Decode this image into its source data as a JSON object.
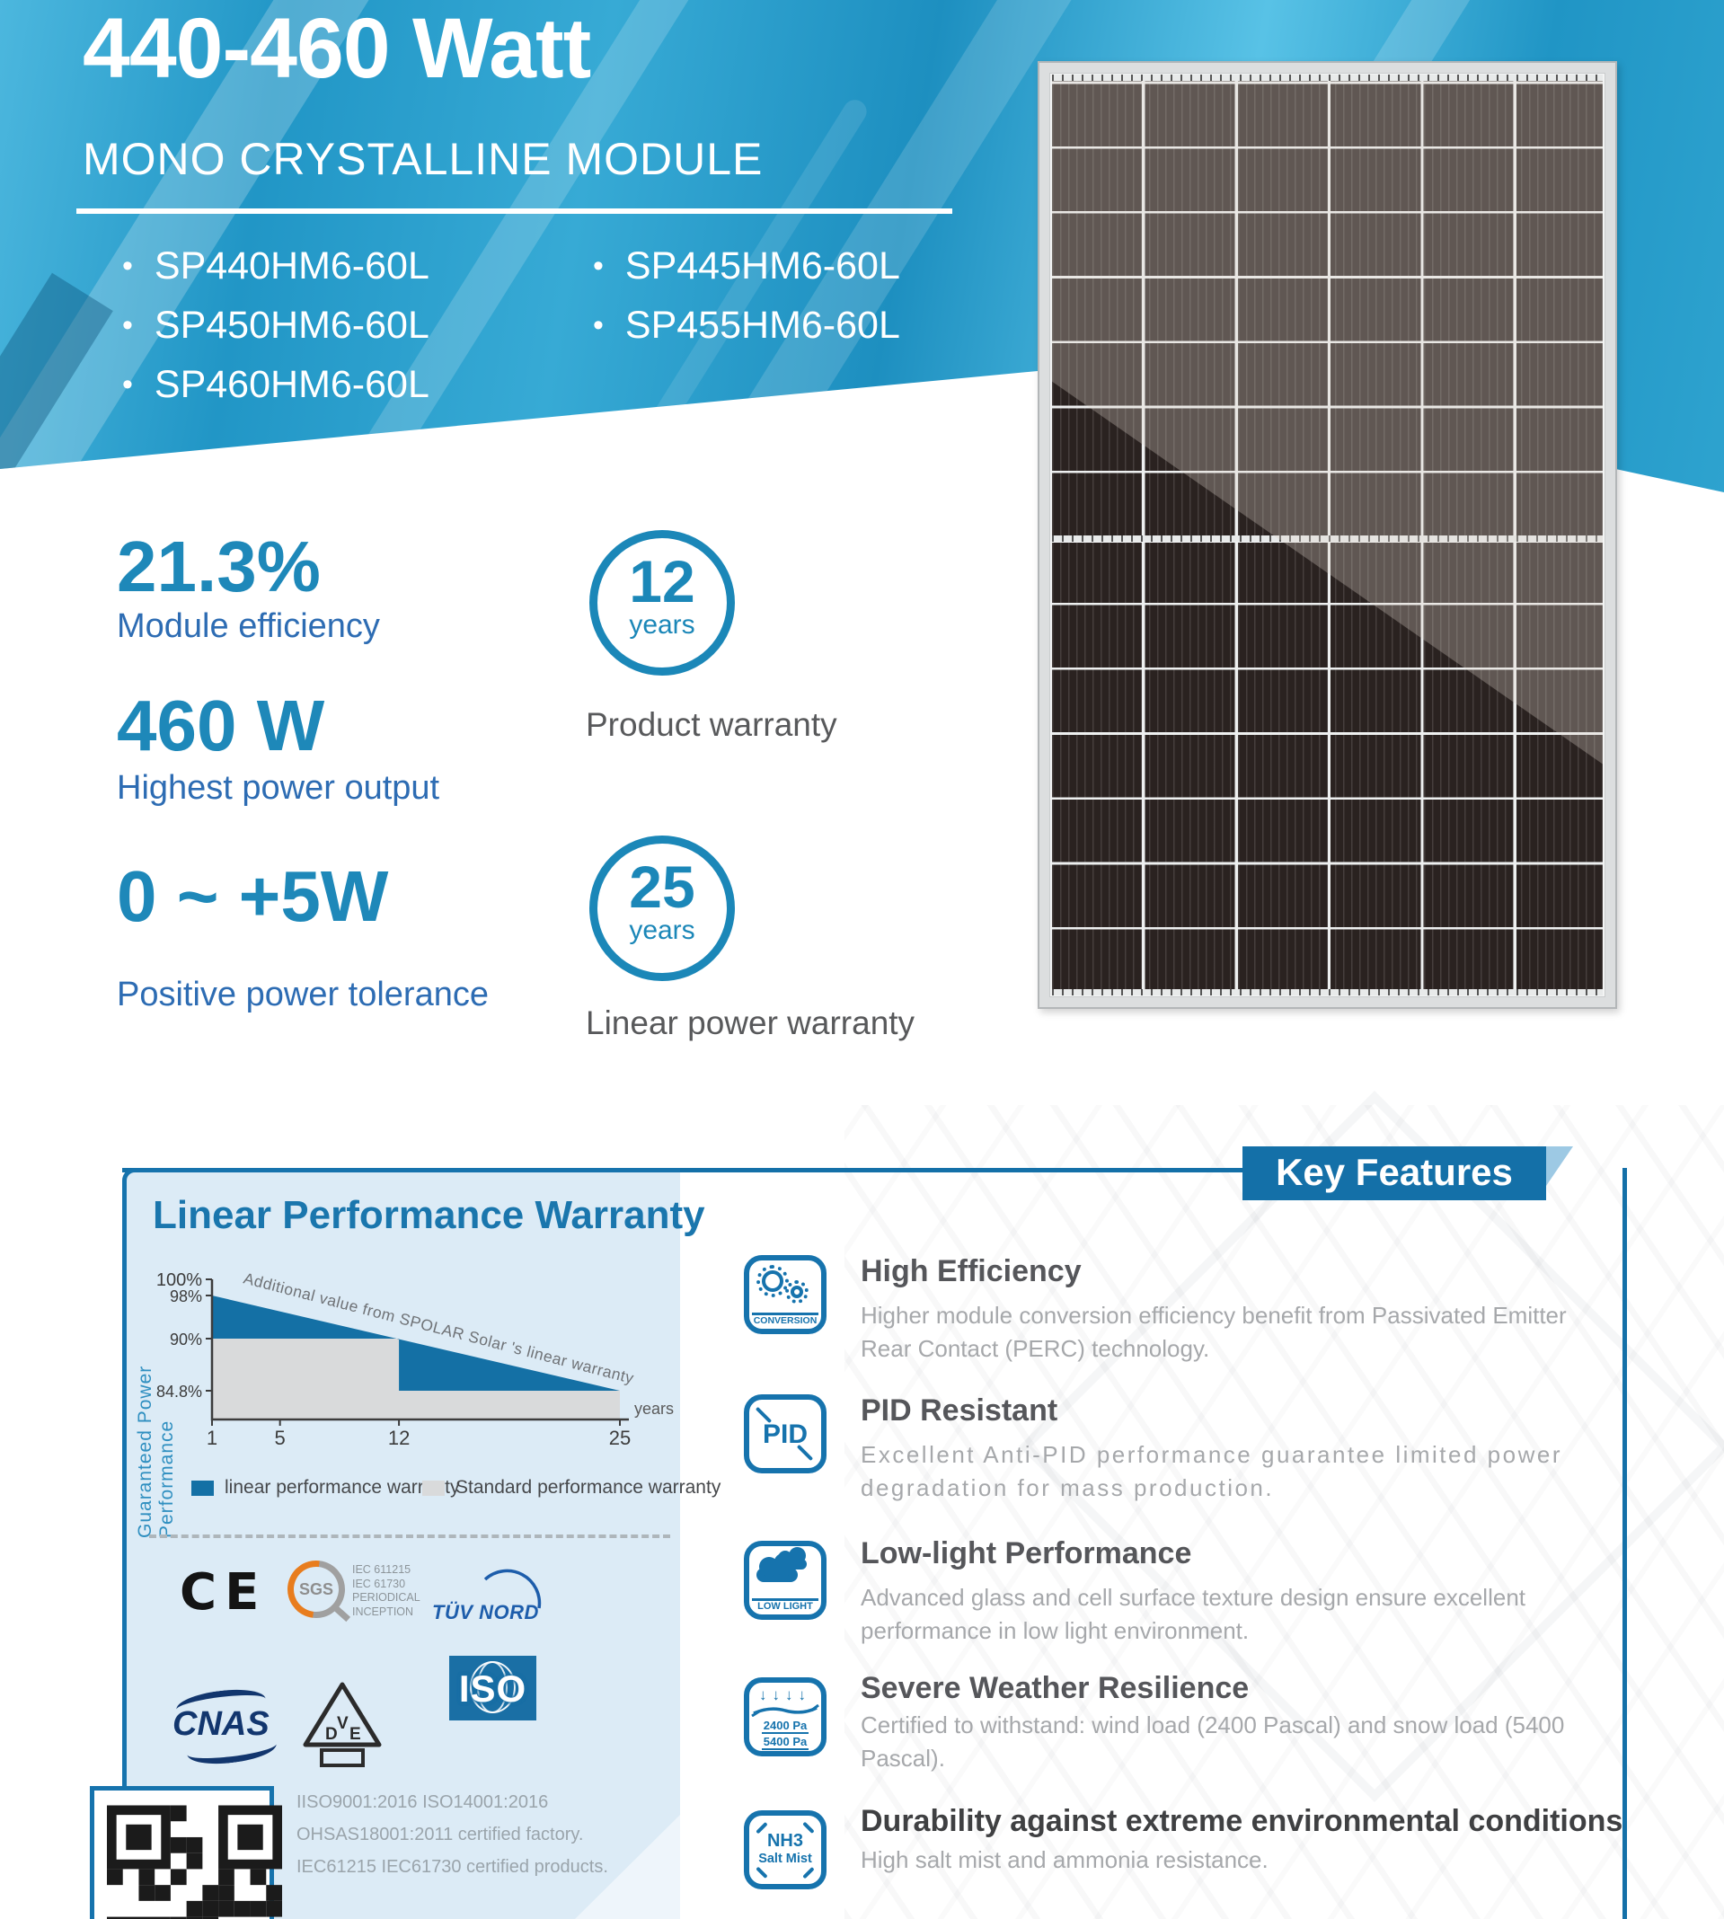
{
  "hero": {
    "watt_range": "440-460 Watt",
    "subtitle": "MONO CRYSTALLINE MODULE",
    "models_left": [
      "SP440HM6-60L",
      "SP450HM6-60L",
      "SP460HM6-60L"
    ],
    "models_right": [
      "SP445HM6-60L",
      "SP455HM6-60L"
    ]
  },
  "stats": [
    {
      "value": "21.3%",
      "label": "Module efficiency"
    },
    {
      "value": "460 W",
      "label": "Highest power output"
    },
    {
      "value": "0 ~ +5W",
      "label": "Positive power tolerance"
    }
  ],
  "warranties": [
    {
      "value": "12",
      "unit": "years",
      "caption": "Product warranty"
    },
    {
      "value": "25",
      "unit": "years",
      "caption": "Linear power warranty"
    }
  ],
  "features": {
    "banner": "Key Features",
    "items": [
      {
        "icon_label": "CONVERSION",
        "title": "High Efficiency",
        "desc": "Higher module conversion efficiency benefit from Passivated Emitter Rear Contact (PERC) technology."
      },
      {
        "icon_label": "PID",
        "title": "PID Resistant",
        "desc": "Excellent Anti-PID performance guarantee limited power degradation for mass production."
      },
      {
        "icon_label": "LOW LIGHT",
        "title": "Low-light Performance",
        "desc": "Advanced glass and cell surface texture design ensure excellent performance in low light environment."
      },
      {
        "icon_label_top": "2400 Pa",
        "icon_label_bottom": "5400 Pa",
        "title": "Severe Weather Resilience",
        "desc": "Certified to withstand: wind load (2400 Pascal) and snow load (5400 Pascal)."
      },
      {
        "icon_label_top": "NH3",
        "icon_label_bottom": "Salt Mist",
        "title": "Durability against extreme environmental conditions",
        "desc": "High salt mist and ammonia resistance."
      }
    ]
  },
  "chart_data": {
    "type": "area",
    "title": "Linear Performance Warranty",
    "xlabel": "years",
    "ylabel": "Guaranteed Power Performance",
    "xlim": [
      1,
      25
    ],
    "x_ticks": [
      1,
      5,
      12,
      25
    ],
    "y_ticks": [
      100,
      98,
      90,
      84.8
    ],
    "y_tick_labels": [
      "100%",
      "98%",
      "90%",
      "84.8%"
    ],
    "annotation": "Additional value from SPOLAR Solar 's linear warranty",
    "series": [
      {
        "name": "linear performance warranty",
        "color": "#1470a5",
        "points": [
          {
            "year": 1,
            "pct": 98
          },
          {
            "year": 25,
            "pct": 84.8
          }
        ]
      },
      {
        "name": "Standard performance warranty",
        "color": "#d9dadb",
        "points": [
          {
            "year": 1,
            "pct": 90
          },
          {
            "year": 12,
            "pct": 90
          },
          {
            "year": 12,
            "pct": 84.8
          },
          {
            "year": 25,
            "pct": 84.8
          }
        ]
      }
    ],
    "legend_position": "bottom"
  },
  "certifications": {
    "ce": "CE",
    "sgs": "SGS",
    "sgs_lines": [
      "IEC 611215",
      "IEC 61730",
      "PERIODICAL",
      "INCEPTION"
    ],
    "tuv": "TÜV NORD",
    "cnas": "CNAS",
    "vde": [
      "D",
      "V",
      "E"
    ],
    "iso": "ISO",
    "factory_lines": [
      "IISO9001:2016 ISO14001:2016",
      "OHSAS18001:2011 certified factory.",
      "IEC61215 IEC61730 certified products."
    ]
  }
}
